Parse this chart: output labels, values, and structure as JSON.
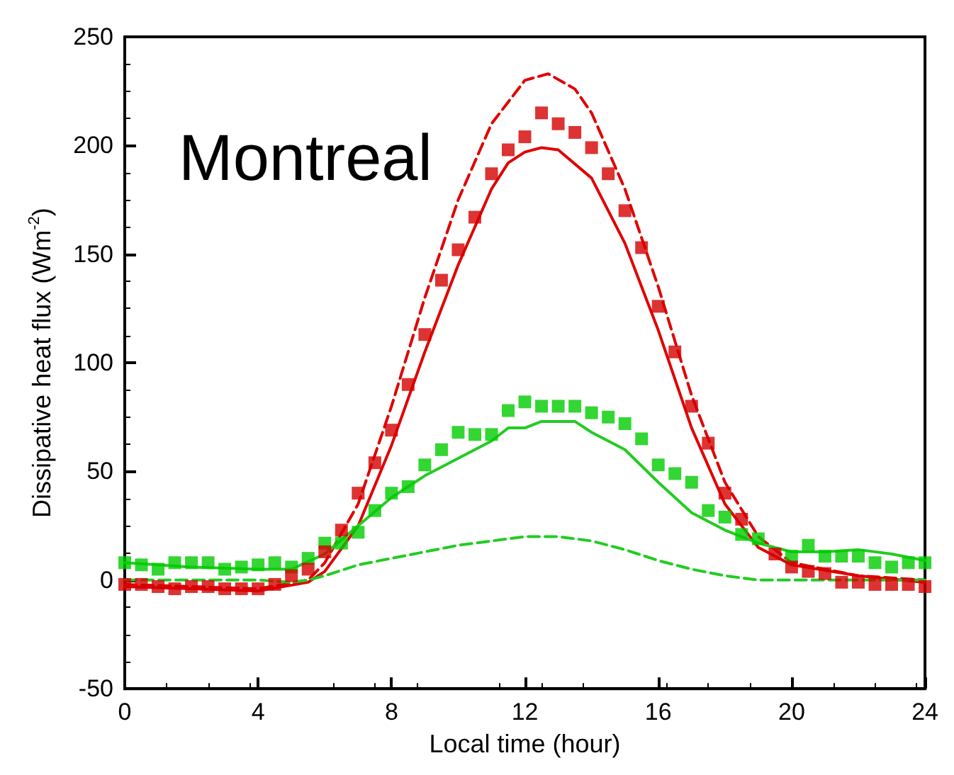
{
  "chart_data": {
    "type": "line",
    "annotations": [
      "Montreal"
    ],
    "xlabel": "Local time (hour)",
    "ylabel": "Dissipative heat flux (Wm$^{-2}$)",
    "xlim": [
      0,
      24
    ],
    "xticks": [
      0,
      4,
      8,
      12,
      16,
      20,
      24
    ],
    "ylim": [
      -50,
      250
    ],
    "yticks": [
      -50,
      0,
      50,
      100,
      150,
      200,
      250
    ],
    "grid": false,
    "series": [
      {
        "color": "#e00000",
        "line_style": "dashed",
        "marker": "none",
        "x": [
          0,
          4,
          5.5,
          6,
          7,
          8,
          9,
          10,
          11,
          12,
          12.7,
          13.5,
          14,
          15,
          16,
          17,
          18,
          19,
          20,
          22,
          24
        ],
        "values": [
          -2,
          -4,
          0,
          8,
          35,
          80,
          130,
          175,
          210,
          230,
          233,
          226,
          215,
          180,
          135,
          85,
          45,
          20,
          8,
          2,
          0
        ]
      },
      {
        "color": "#e00000",
        "line_style": "solid",
        "marker": "none",
        "x": [
          0,
          4,
          5.5,
          6,
          7,
          8,
          9,
          10,
          11,
          11.5,
          12,
          12.5,
          13,
          14,
          15,
          16,
          17,
          18,
          19,
          20,
          22,
          24
        ],
        "values": [
          -3,
          -5,
          -1,
          4,
          25,
          62,
          105,
          145,
          180,
          192,
          197,
          199,
          198,
          185,
          155,
          115,
          70,
          35,
          15,
          7,
          2,
          -1
        ]
      },
      {
        "type": "scatter",
        "color": "#d40000",
        "marker": "square",
        "x": [
          0,
          0.5,
          1,
          1.5,
          2,
          2.5,
          3,
          3.5,
          4,
          4.5,
          5,
          5.5,
          6,
          6.5,
          7,
          7.5,
          8,
          8.5,
          9,
          9.5,
          10,
          10.5,
          11,
          11.5,
          12,
          12.5,
          13,
          13.5,
          14,
          14.5,
          15,
          15.5,
          16,
          16.5,
          17,
          17.5,
          18,
          18.5,
          19,
          19.5,
          20,
          20.5,
          21,
          21.5,
          22,
          22.5,
          23,
          23.5,
          24
        ],
        "values": [
          -2,
          -2,
          -3,
          -4,
          -3,
          -3,
          -4,
          -4,
          -4,
          -2,
          2,
          5,
          13,
          23,
          40,
          54,
          69,
          90,
          113,
          138,
          152,
          167,
          187,
          198,
          204,
          215,
          210,
          206,
          199,
          187,
          170,
          153,
          126,
          105,
          80,
          63,
          40,
          28,
          null,
          12,
          6,
          4,
          3,
          -1,
          -1,
          -2,
          -2,
          -2,
          -3
        ]
      },
      {
        "color": "#22cc22",
        "line_style": "solid",
        "marker": "none",
        "x": [
          0,
          2,
          4,
          5,
          6,
          7,
          8,
          9,
          10,
          11,
          11.5,
          12,
          12.5,
          13,
          13.5,
          14,
          15,
          16,
          17,
          18,
          19,
          20,
          21,
          22,
          23,
          24
        ],
        "values": [
          8,
          6,
          5,
          5,
          12,
          25,
          38,
          48,
          56,
          64,
          70,
          70,
          73,
          73,
          73,
          68,
          60,
          45,
          31,
          23,
          17,
          13,
          13,
          14,
          12,
          9
        ]
      },
      {
        "color": "#22cc22",
        "line_style": "dashed",
        "marker": "none",
        "x": [
          0,
          4,
          5,
          5.5,
          6,
          7,
          8,
          9,
          10,
          11,
          12,
          13,
          14,
          15,
          16,
          17,
          18,
          19,
          20,
          22,
          24
        ],
        "values": [
          0,
          0,
          -1,
          0,
          2,
          7,
          10,
          13,
          16,
          18,
          20,
          20,
          18,
          14,
          9,
          5,
          2,
          0,
          0,
          0,
          0
        ]
      },
      {
        "type": "scatter",
        "color": "#00cc00",
        "marker": "square",
        "x": [
          0,
          0.5,
          1,
          1.5,
          2,
          2.5,
          3,
          3.5,
          4,
          4.5,
          5,
          5.5,
          6,
          6.5,
          7,
          7.5,
          8,
          8.5,
          9,
          9.5,
          10,
          10.5,
          11,
          11.5,
          12,
          12.5,
          13,
          13.5,
          14,
          14.5,
          15,
          15.5,
          16,
          16.5,
          17,
          17.5,
          18,
          18.5,
          19,
          19.5,
          20,
          20.5,
          21,
          21.5,
          22,
          22.5,
          23,
          23.5,
          24
        ],
        "values": [
          8,
          7,
          5,
          8,
          8,
          8,
          5,
          6,
          7,
          8,
          6,
          10,
          17,
          17,
          22,
          32,
          40,
          43,
          53,
          60,
          68,
          67,
          67,
          78,
          82,
          80,
          80,
          80,
          77,
          75,
          72,
          65,
          53,
          49,
          45,
          32,
          29,
          21,
          19,
          null,
          11,
          16,
          11,
          11,
          11,
          8,
          6,
          8,
          8
        ]
      }
    ]
  }
}
